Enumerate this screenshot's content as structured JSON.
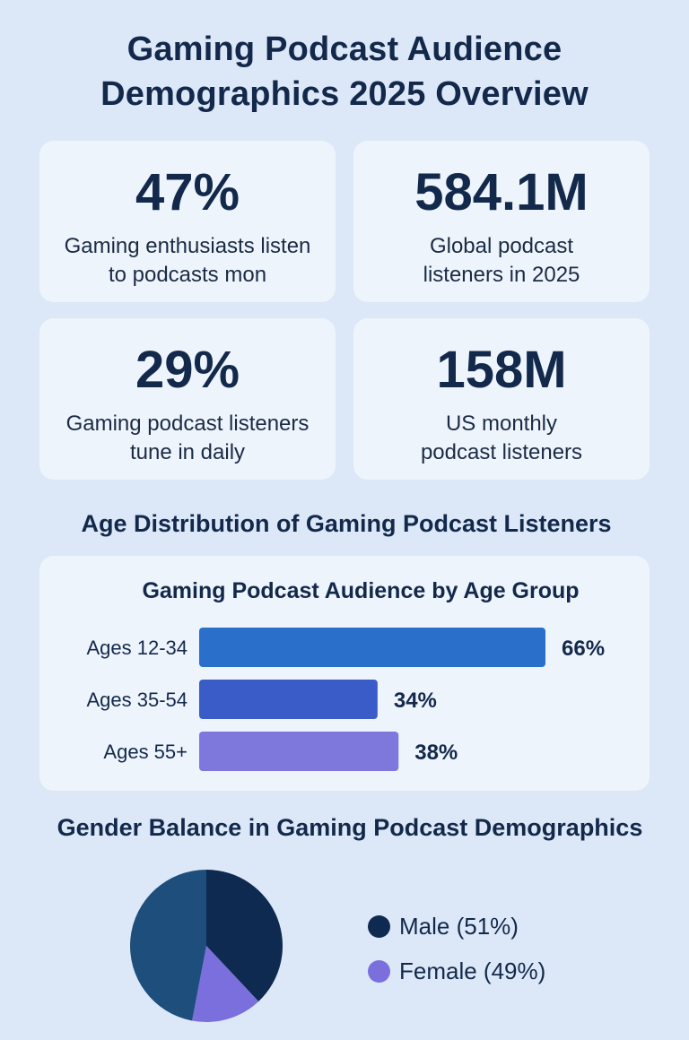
{
  "title": {
    "line1": "Gaming Podcast Audience",
    "line2": "Demographics 2025 Overview"
  },
  "stats": [
    {
      "value": "47%",
      "label": "Gaming enthusiasts listen to podcasts mon"
    },
    {
      "value": "584.1M",
      "label": "Global podcast listeners in 2025"
    },
    {
      "value": "29%",
      "label": "Gaming podcast listeners tune in daily"
    },
    {
      "value": "158M",
      "label": "US monthly podcast listeners"
    }
  ],
  "sections": {
    "age_title": "Age Distribution of Gaming Podcast Listeners",
    "gender_title": "Gender Balance in Gaming Podcast Demographics"
  },
  "colors": {
    "background": "#dce8f8",
    "card": "#eef4fc",
    "text": "#13294b",
    "bar_1": "#2a6fc9",
    "bar_2": "#3a5cc8",
    "bar_3": "#7f78dc",
    "pie_male": "#0e2a50",
    "pie_female": "#7a6fdc",
    "pie_remainder": "#1d4e7c"
  },
  "chart_data": [
    {
      "type": "bar",
      "orientation": "horizontal",
      "title": "Gaming Podcast Audience by Age Group",
      "categories": [
        "Ages 12-34",
        "Ages 35-54",
        "Ages 55+"
      ],
      "values": [
        66,
        34,
        38
      ],
      "value_labels": [
        "66%",
        "34%",
        "38%"
      ],
      "xlim": [
        0,
        66
      ],
      "grid": false
    },
    {
      "type": "pie",
      "title": "",
      "slices": [
        {
          "label": "Male (51%)",
          "value": 38,
          "color": "#0e2a50"
        },
        {
          "label": "Female (49%)",
          "value": 15,
          "color": "#7a6fdc"
        },
        {
          "value": 47,
          "color": "#1d4e7c"
        }
      ],
      "legend": [
        {
          "label": "Male (51%)",
          "color": "#0e2a50"
        },
        {
          "label": "Female (49%)",
          "color": "#7a6fdc"
        }
      ],
      "legend_position": "right"
    }
  ]
}
